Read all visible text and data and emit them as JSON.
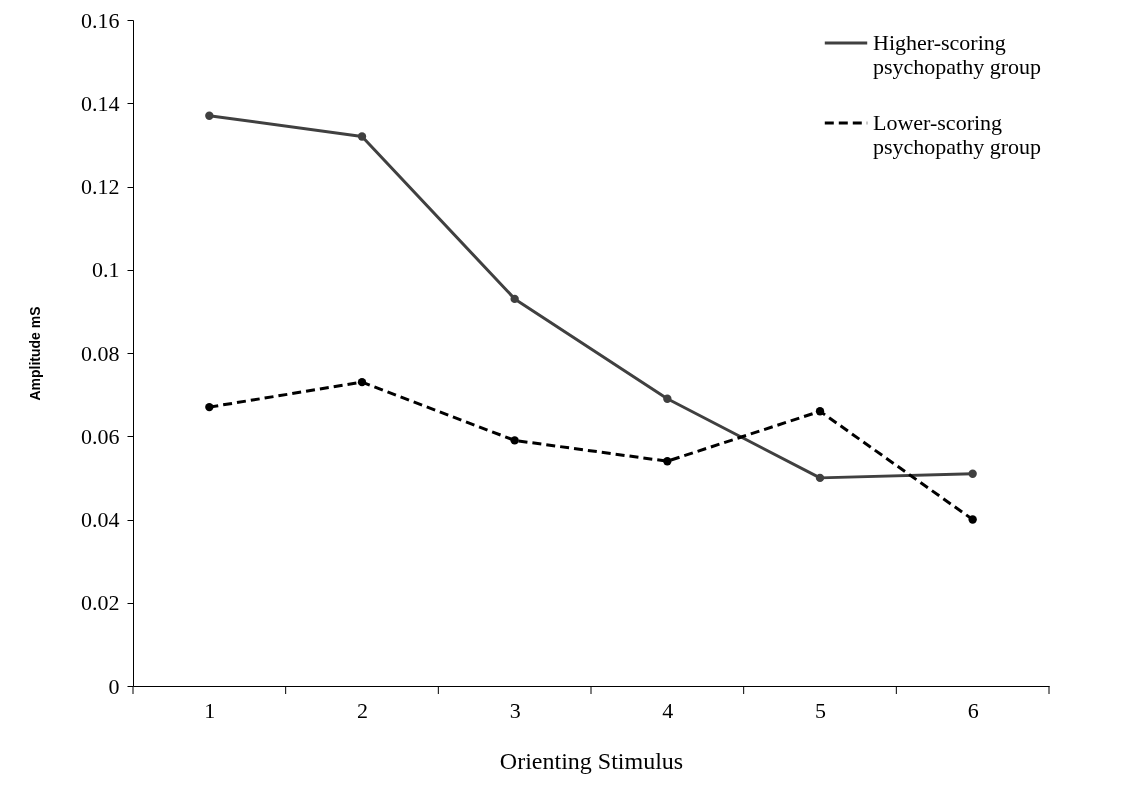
{
  "chart_data": {
    "type": "line",
    "xlabel": "Orienting Stimulus",
    "ylabel": "Amplitude mS",
    "categories": [
      "1",
      "2",
      "3",
      "4",
      "5",
      "6"
    ],
    "series": [
      {
        "name": "Higher-scoring psychopathy group",
        "color": "#404040",
        "line_style": "solid",
        "values": [
          0.137,
          0.132,
          0.093,
          0.069,
          0.05,
          0.051
        ]
      },
      {
        "name": "Lower-scoring psychopathy group",
        "color": "#000000",
        "line_style": "dashed",
        "values": [
          0.067,
          0.073,
          0.059,
          0.054,
          0.066,
          0.04
        ]
      }
    ],
    "ylim": [
      0,
      0.16
    ],
    "yticks": [
      0,
      0.02,
      0.04,
      0.06,
      0.08,
      0.1,
      0.12,
      0.14,
      0.16
    ],
    "grid": false,
    "legend": "top right",
    "marker": "circle"
  }
}
